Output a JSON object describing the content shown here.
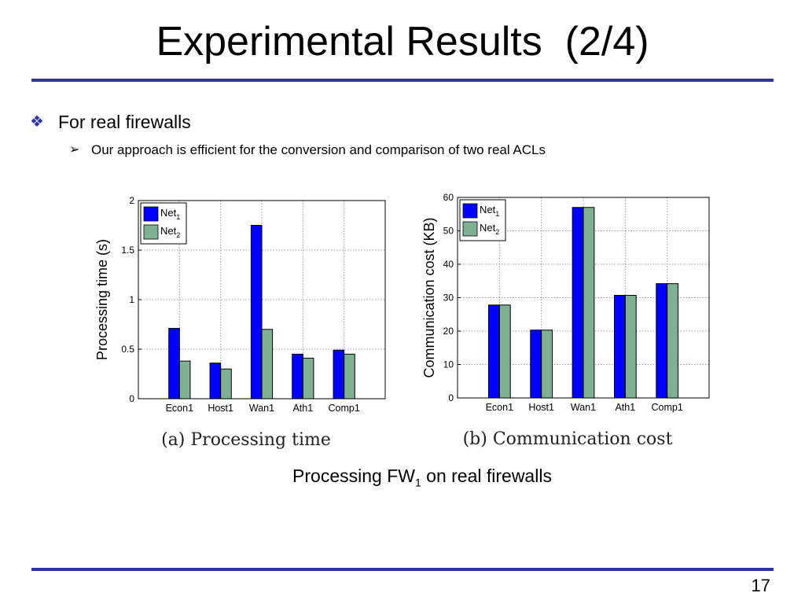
{
  "slide": {
    "title": "Experimental Results  (2/4)",
    "bullet1": "For real firewalls",
    "bullet2": "Our approach is efficient for the conversion and comparison of two real ACLs",
    "caption_prefix": "Processing FW",
    "caption_subscript": "1",
    "caption_suffix": " on real firewalls",
    "page_number": "17",
    "accent_color": "#3333a0"
  },
  "chart_data": [
    {
      "type": "bar",
      "title": "",
      "subcaption": "(a)  Processing time",
      "xlabel": "",
      "ylabel": "Processing time (s)",
      "categories": [
        "Econ1",
        "Host1",
        "Wan1",
        "Ath1",
        "Comp1"
      ],
      "series": [
        {
          "name": "Net",
          "subscript": "1",
          "color": "#0000ff",
          "values": [
            0.71,
            0.36,
            1.75,
            0.45,
            0.49
          ]
        },
        {
          "name": "Net",
          "subscript": "2",
          "color": "#7faf94",
          "values": [
            0.38,
            0.3,
            0.7,
            0.41,
            0.45
          ]
        }
      ],
      "ylim": [
        0,
        2
      ],
      "yticks": [
        "0",
        "0.5",
        "1",
        "1.5",
        "2"
      ],
      "grid": true,
      "legend": "top-left"
    },
    {
      "type": "bar",
      "title": "",
      "subcaption": "(b)  Communication cost",
      "xlabel": "",
      "ylabel": "Communication cost (KB)",
      "categories": [
        "Econ1",
        "Host1",
        "Wan1",
        "Ath1",
        "Comp1"
      ],
      "series": [
        {
          "name": "Net",
          "subscript": "1",
          "color": "#0000ff",
          "values": [
            27.8,
            20.3,
            57.0,
            30.7,
            34.2
          ]
        },
        {
          "name": "Net",
          "subscript": "2",
          "color": "#7faf94",
          "values": [
            27.8,
            20.3,
            57.0,
            30.7,
            34.2
          ]
        }
      ],
      "ylim": [
        0,
        60
      ],
      "yticks": [
        "0",
        "10",
        "20",
        "30",
        "40",
        "50",
        "60"
      ],
      "grid": true,
      "legend": "top-left"
    }
  ]
}
